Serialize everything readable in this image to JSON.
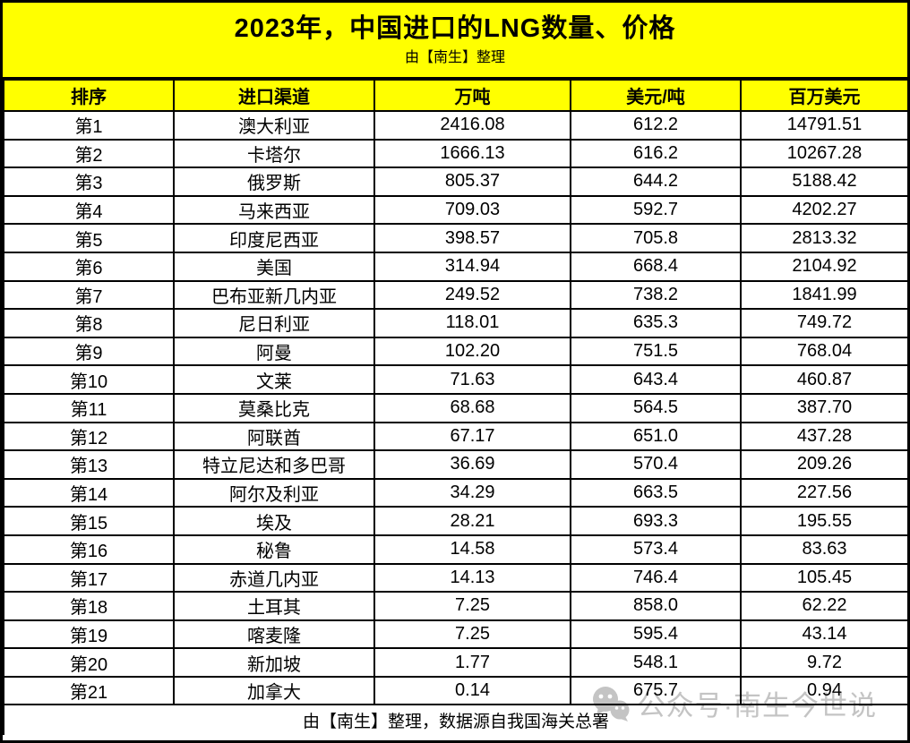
{
  "page": {
    "title": "2023年，中国进口的LNG数量、价格",
    "subtitle": "由【南生】整理",
    "footer_note": "由【南生】整理，数据源自我国海关总署"
  },
  "watermark": {
    "icon": "wechat-icon",
    "text": "公众号·南生今世说"
  },
  "colors": {
    "band_bg": "#FFFF00",
    "border": "#000000",
    "row_bg": "#FFFFFF",
    "text": "#000000",
    "watermark": "#C4C4C4"
  },
  "chart_data": {
    "type": "table",
    "title": "2023年，中国进口的LNG数量、价格",
    "subtitle": "由【南生】整理",
    "footer": "由【南生】整理，数据源自我国海关总署",
    "columns": [
      "排序",
      "进口渠道",
      "万吨",
      "美元/吨",
      "百万美元"
    ],
    "column_keys": [
      "rank",
      "channel",
      "volume_10k_tons",
      "usd_per_ton",
      "million_usd"
    ],
    "rows": [
      [
        "第1",
        "澳大利亚",
        "2416.08",
        "612.2",
        "14791.51"
      ],
      [
        "第2",
        "卡塔尔",
        "1666.13",
        "616.2",
        "10267.28"
      ],
      [
        "第3",
        "俄罗斯",
        "805.37",
        "644.2",
        "5188.42"
      ],
      [
        "第4",
        "马来西亚",
        "709.03",
        "592.7",
        "4202.27"
      ],
      [
        "第5",
        "印度尼西亚",
        "398.57",
        "705.8",
        "2813.32"
      ],
      [
        "第6",
        "美国",
        "314.94",
        "668.4",
        "2104.92"
      ],
      [
        "第7",
        "巴布亚新几内亚",
        "249.52",
        "738.2",
        "1841.99"
      ],
      [
        "第8",
        "尼日利亚",
        "118.01",
        "635.3",
        "749.72"
      ],
      [
        "第9",
        "阿曼",
        "102.20",
        "751.5",
        "768.04"
      ],
      [
        "第10",
        "文莱",
        "71.63",
        "643.4",
        "460.87"
      ],
      [
        "第11",
        "莫桑比克",
        "68.68",
        "564.5",
        "387.70"
      ],
      [
        "第12",
        "阿联酋",
        "67.17",
        "651.0",
        "437.28"
      ],
      [
        "第13",
        "特立尼达和多巴哥",
        "36.69",
        "570.4",
        "209.26"
      ],
      [
        "第14",
        "阿尔及利亚",
        "34.29",
        "663.5",
        "227.56"
      ],
      [
        "第15",
        "埃及",
        "28.21",
        "693.3",
        "195.55"
      ],
      [
        "第16",
        "秘鲁",
        "14.58",
        "573.4",
        "83.63"
      ],
      [
        "第17",
        "赤道几内亚",
        "14.13",
        "746.4",
        "105.45"
      ],
      [
        "第18",
        "土耳其",
        "7.25",
        "858.0",
        "62.22"
      ],
      [
        "第19",
        "喀麦隆",
        "7.25",
        "595.4",
        "43.14"
      ],
      [
        "第20",
        "新加坡",
        "1.77",
        "548.1",
        "9.72"
      ],
      [
        "第21",
        "加拿大",
        "0.14",
        "675.7",
        "0.94"
      ]
    ]
  }
}
